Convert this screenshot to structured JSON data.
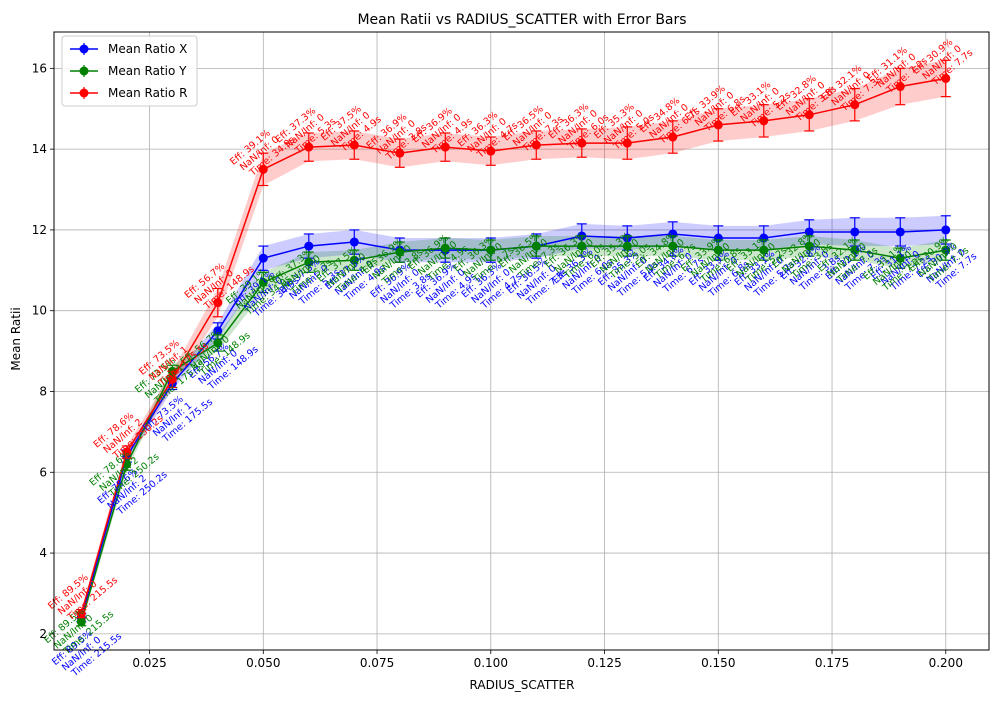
{
  "chart_data": {
    "type": "line",
    "title": "Mean Ratii vs RADIUS_SCATTER with Error Bars",
    "xlabel": "RADIUS_SCATTER",
    "ylabel": "Mean Ratii",
    "xlim": [
      0.004,
      0.2095
    ],
    "ylim": [
      1.6,
      16.9
    ],
    "xticks": [
      0.025,
      0.05,
      0.075,
      0.1,
      0.125,
      0.15,
      0.175,
      0.2
    ],
    "xtick_labels": [
      "0.025",
      "0.050",
      "0.075",
      "0.100",
      "0.125",
      "0.150",
      "0.175",
      "0.200"
    ],
    "yticks": [
      2,
      4,
      6,
      8,
      10,
      12,
      14,
      16
    ],
    "ytick_labels": [
      "2",
      "4",
      "6",
      "8",
      "10",
      "12",
      "14",
      "16"
    ],
    "grid": true,
    "legend_position": "top-left",
    "x": [
      0.01,
      0.02,
      0.03,
      0.04,
      0.05,
      0.06,
      0.07,
      0.08,
      0.09,
      0.1,
      0.11,
      0.12,
      0.13,
      0.14,
      0.15,
      0.16,
      0.17,
      0.18,
      0.19,
      0.2
    ],
    "series": [
      {
        "name": "Mean Ratio X",
        "color": "#0000ff",
        "values": [
          2.4,
          6.4,
          8.2,
          9.5,
          11.3,
          11.6,
          11.7,
          11.5,
          11.5,
          11.5,
          11.6,
          11.85,
          11.8,
          11.9,
          11.8,
          11.8,
          11.95,
          11.95,
          11.95,
          12.0
        ],
        "errors": [
          0.1,
          0.15,
          0.15,
          0.2,
          0.3,
          0.3,
          0.3,
          0.3,
          0.3,
          0.3,
          0.3,
          0.3,
          0.3,
          0.3,
          0.3,
          0.3,
          0.3,
          0.35,
          0.35,
          0.35
        ],
        "annotation_color": "#0000ff",
        "annotations": [
          [
            "Eff: 89.5%",
            "NaN/Inf: 0",
            "Time: 215.5s"
          ],
          [
            "Eff: 78.6%",
            "NaN/Inf: 2",
            "Time: 250.2s"
          ],
          [
            "Eff: 73.5%",
            "NaN/Inf: 1",
            "Time: 175.5s"
          ],
          [
            "Eff: 56.7%",
            "NaN/Inf: 0",
            "Time: 148.9s"
          ],
          [
            "Eff: 39.1%",
            "NaN/Inf: 0",
            "Time: 34.9s"
          ],
          [
            "Eff: 37.3%",
            "NaN/Inf: 0",
            "Time: 5.3s"
          ],
          [
            "Eff: 37.5%",
            "NaN/Inf: 0",
            "Time: 4.9s"
          ],
          [
            "Eff: 36.9%",
            "NaN/Inf: 0",
            "Time: 3.8s"
          ],
          [
            "Eff: 36.9%",
            "NaN/Inf: 0",
            "Time: 4.9s"
          ],
          [
            "Eff: 36.3%",
            "NaN/Inf: 0",
            "Time: 4.7s"
          ],
          [
            "Eff: 36.5%",
            "NaN/Inf: 0",
            "Time: 7.3s"
          ],
          [
            "Eff: 36.3%",
            "NaN/Inf: 0",
            "Time: 6.0s"
          ],
          [
            "Eff: 35.3%",
            "NaN/Inf: 0",
            "Time: 5.0s"
          ],
          [
            "Eff: 34.8%",
            "NaN/Inf: 0",
            "Time: 6.7s"
          ],
          [
            "Eff: 33.9%",
            "NaN/Inf: 0",
            "Time: 6.8s"
          ],
          [
            "Eff: 33.1%",
            "NaN/Inf: 0",
            "Time: 5.2s"
          ],
          [
            "Eff: 32.8%",
            "NaN/Inf: 0",
            "Time: 3.8s"
          ],
          [
            "Eff: 32.1%",
            "NaN/Inf: 0",
            "Time: 7.3s"
          ],
          [
            "Eff: 31.1%",
            "NaN/Inf: 0",
            "Time: 7.2s"
          ],
          [
            "Eff: 30.9%",
            "NaN/Inf: 0",
            "Time: 7.7s"
          ]
        ]
      },
      {
        "name": "Mean Ratio Y",
        "color": "#008000",
        "values": [
          2.3,
          6.2,
          8.5,
          9.2,
          10.7,
          11.2,
          11.25,
          11.45,
          11.55,
          11.5,
          11.6,
          11.6,
          11.6,
          11.6,
          11.5,
          11.5,
          11.6,
          11.5,
          11.3,
          11.5
        ],
        "errors": [
          0.1,
          0.15,
          0.15,
          0.2,
          0.25,
          0.25,
          0.25,
          0.25,
          0.25,
          0.25,
          0.25,
          0.25,
          0.25,
          0.25,
          0.25,
          0.25,
          0.25,
          0.25,
          0.25,
          0.25
        ],
        "annotation_color": "#008000",
        "annotations": [
          [
            "Eff: 89.5%",
            "NaN/Inf: 0",
            "Time: 215.5s"
          ],
          [
            "Eff: 78.6%",
            "NaN/Inf: 2",
            "Time: 250.2s"
          ],
          [
            "Eff: 73.5%",
            "NaN/Inf: 1",
            "Time: 175.5s"
          ],
          [
            "Eff: 56.7%",
            "NaN/Inf: 0",
            "Time: 148.9s"
          ],
          [
            "Eff: 39.1%",
            "NaN/Inf: 0",
            "Time: 34.9s"
          ],
          [
            "Eff: 37.3%",
            "NaN/Inf: 0",
            "Time: 5.3s"
          ],
          [
            "Eff: 37.5%",
            "NaN/Inf: 0",
            "Time: 4.9s"
          ],
          [
            "Eff: 36.9%",
            "NaN/Inf: 0",
            "Time: 3.8s"
          ],
          [
            "Eff: 36.9%",
            "NaN/Inf: 0",
            "Time: 4.9s"
          ],
          [
            "Eff: 36.3%",
            "NaN/Inf: 0",
            "Time: 4.7s"
          ],
          [
            "Eff: 36.5%",
            "NaN/Inf: 0",
            "Time: 7.3s"
          ],
          [
            "Eff: 36.3%",
            "NaN/Inf: 0",
            "Time: 6.0s"
          ],
          [
            "Eff: 35.3%",
            "NaN/Inf: 0",
            "Time: 5.0s"
          ],
          [
            "Eff: 34.8%",
            "NaN/Inf: 0",
            "Time: 6.7s"
          ],
          [
            "Eff: 33.9%",
            "NaN/Inf: 0",
            "Time: 6.8s"
          ],
          [
            "Eff: 33.1%",
            "NaN/Inf: 0",
            "Time: 5.2s"
          ],
          [
            "Eff: 32.8%",
            "NaN/Inf: 0",
            "Time: 3.8s"
          ],
          [
            "Eff: 32.1%",
            "NaN/Inf: 0",
            "Time: 7.3s"
          ],
          [
            "Eff: 31.1%",
            "NaN/Inf: 0",
            "Time: 7.2s"
          ],
          [
            "Eff: 30.9%",
            "NaN/Inf: 0",
            "Time: 7.7s"
          ]
        ]
      },
      {
        "name": "Mean Ratio R",
        "color": "#ff0000",
        "values": [
          2.5,
          6.5,
          8.3,
          10.2,
          13.5,
          14.05,
          14.1,
          13.9,
          14.05,
          13.95,
          14.1,
          14.15,
          14.15,
          14.3,
          14.6,
          14.7,
          14.85,
          15.1,
          15.55,
          15.75
        ],
        "errors": [
          0.1,
          0.15,
          0.2,
          0.35,
          0.4,
          0.35,
          0.35,
          0.35,
          0.35,
          0.35,
          0.35,
          0.35,
          0.4,
          0.4,
          0.4,
          0.4,
          0.4,
          0.4,
          0.45,
          0.45
        ],
        "annotation_color": "#ff0000",
        "annotations": [
          [
            "Eff: 89.5%",
            "NaN/Inf: 0",
            "Time: 215.5s"
          ],
          [
            "Eff: 78.6%",
            "NaN/Inf: 2",
            "Time: 250.2s"
          ],
          [
            "Eff: 73.5%",
            "NaN/Inf: 1",
            "Time: 175.5s"
          ],
          [
            "Eff: 56.7%",
            "NaN/Inf: 0",
            "Time: 148.9s"
          ],
          [
            "Eff: 39.1%",
            "NaN/Inf: 0",
            "Time: 34.9s"
          ],
          [
            "Eff: 37.3%",
            "NaN/Inf: 0",
            "Time: 5.3s"
          ],
          [
            "Eff: 37.5%",
            "NaN/Inf: 0",
            "Time: 4.9s"
          ],
          [
            "Eff: 36.9%",
            "NaN/Inf: 0",
            "Time: 3.8s"
          ],
          [
            "Eff: 36.9%",
            "NaN/Inf: 0",
            "Time: 4.9s"
          ],
          [
            "Eff: 36.3%",
            "NaN/Inf: 0",
            "Time: 4.7s"
          ],
          [
            "Eff: 36.5%",
            "NaN/Inf: 0",
            "Time: 7.3s"
          ],
          [
            "Eff: 36.3%",
            "NaN/Inf: 0",
            "Time: 6.0s"
          ],
          [
            "Eff: 35.3%",
            "NaN/Inf: 0",
            "Time: 5.0s"
          ],
          [
            "Eff: 34.8%",
            "NaN/Inf: 0",
            "Time: 6.7s"
          ],
          [
            "Eff: 33.9%",
            "NaN/Inf: 0",
            "Time: 6.8s"
          ],
          [
            "Eff: 33.1%",
            "NaN/Inf: 0",
            "Time: 5.2s"
          ],
          [
            "Eff: 32.8%",
            "NaN/Inf: 0",
            "Time: 3.8s"
          ],
          [
            "Eff: 32.1%",
            "NaN/Inf: 0",
            "Time: 7.3s"
          ],
          [
            "Eff: 31.1%",
            "NaN/Inf: 0",
            "Time: 7.2s"
          ],
          [
            "Eff: 30.9%",
            "NaN/Inf: 0",
            "Time: 7.7s"
          ]
        ]
      }
    ]
  }
}
